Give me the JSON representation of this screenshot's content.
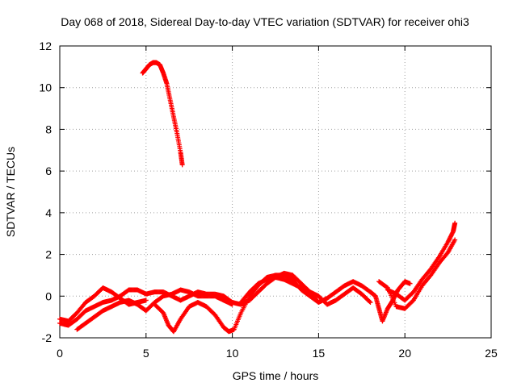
{
  "chart_data": {
    "type": "scatter",
    "title": "Day 068 of 2018, Sidereal Day-to-day VTEC variation (SDTVAR) for receiver ohi3",
    "xlabel": "GPS time / hours",
    "ylabel": "SDTVAR / TECUs",
    "xlim": [
      0,
      25
    ],
    "ylim": [
      -2,
      12
    ],
    "xticks": [
      0,
      5,
      10,
      15,
      20,
      25
    ],
    "yticks": [
      -2,
      0,
      2,
      4,
      6,
      8,
      10,
      12
    ],
    "grid": true,
    "marker": "plus",
    "color": "#ff0000",
    "series": [
      {
        "name": "track-1",
        "points": [
          [
            0.0,
            -1.1
          ],
          [
            0.5,
            -1.2
          ],
          [
            1.0,
            -0.8
          ],
          [
            1.5,
            -0.3
          ],
          [
            2.0,
            0.0
          ],
          [
            2.5,
            0.4
          ],
          [
            3.0,
            0.2
          ],
          [
            3.5,
            -0.1
          ],
          [
            4.0,
            -0.4
          ],
          [
            4.5,
            -0.3
          ],
          [
            5.0,
            -0.2
          ]
        ]
      },
      {
        "name": "track-2",
        "points": [
          [
            0.0,
            -1.3
          ],
          [
            0.5,
            -1.4
          ],
          [
            1.0,
            -1.1
          ],
          [
            1.5,
            -0.7
          ],
          [
            2.0,
            -0.5
          ],
          [
            2.5,
            -0.3
          ],
          [
            3.0,
            -0.2
          ],
          [
            3.5,
            0.0
          ],
          [
            4.0,
            0.3
          ],
          [
            4.5,
            0.3
          ],
          [
            5.0,
            0.1
          ],
          [
            5.5,
            0.2
          ],
          [
            6.0,
            0.2
          ],
          [
            6.5,
            0.0
          ],
          [
            7.0,
            -0.2
          ],
          [
            7.5,
            0.0
          ],
          [
            8.0,
            0.2
          ],
          [
            8.5,
            0.1
          ],
          [
            9.0,
            0.1
          ],
          [
            9.5,
            0.0
          ],
          [
            10.0,
            -0.3
          ],
          [
            10.5,
            -0.4
          ],
          [
            11.0,
            -0.2
          ],
          [
            11.5,
            0.2
          ],
          [
            12.0,
            0.6
          ],
          [
            12.5,
            0.9
          ],
          [
            13.0,
            0.8
          ],
          [
            13.5,
            0.6
          ],
          [
            14.0,
            0.4
          ],
          [
            14.5,
            0.2
          ],
          [
            15.0,
            -0.3
          ]
        ]
      },
      {
        "name": "track-3",
        "points": [
          [
            1.0,
            -1.6
          ],
          [
            1.5,
            -1.3
          ],
          [
            2.0,
            -1.0
          ],
          [
            2.5,
            -0.7
          ],
          [
            3.0,
            -0.5
          ],
          [
            3.5,
            -0.3
          ],
          [
            4.0,
            -0.2
          ],
          [
            4.5,
            -0.4
          ],
          [
            5.0,
            -0.7
          ],
          [
            5.5,
            -0.3
          ],
          [
            6.0,
            0.0
          ],
          [
            6.5,
            0.1
          ],
          [
            7.0,
            0.3
          ],
          [
            7.5,
            0.2
          ],
          [
            8.0,
            0.0
          ],
          [
            8.5,
            0.0
          ],
          [
            9.0,
            0.0
          ],
          [
            9.5,
            -0.2
          ],
          [
            10.0,
            -0.4
          ]
        ]
      },
      {
        "name": "track-4",
        "points": [
          [
            5.5,
            -0.4
          ],
          [
            6.0,
            -0.8
          ],
          [
            6.3,
            -1.4
          ],
          [
            6.6,
            -1.7
          ],
          [
            7.0,
            -1.1
          ],
          [
            7.5,
            -0.5
          ],
          [
            8.0,
            -0.3
          ],
          [
            8.5,
            -0.5
          ],
          [
            9.0,
            -0.9
          ],
          [
            9.5,
            -1.5
          ],
          [
            9.8,
            -1.7
          ],
          [
            10.1,
            -1.6
          ],
          [
            10.5,
            -0.8
          ],
          [
            11.0,
            0.0
          ],
          [
            11.5,
            0.5
          ],
          [
            12.0,
            0.9
          ],
          [
            12.5,
            1.0
          ],
          [
            13.0,
            1.0
          ],
          [
            13.5,
            0.8
          ],
          [
            14.0,
            0.3
          ],
          [
            14.5,
            0.0
          ],
          [
            15.0,
            -0.3
          ],
          [
            15.5,
            -0.1
          ],
          [
            16.0,
            0.2
          ],
          [
            16.5,
            0.5
          ],
          [
            17.0,
            0.7
          ],
          [
            17.5,
            0.5
          ],
          [
            18.0,
            0.2
          ]
        ]
      },
      {
        "name": "track-5",
        "points": [
          [
            10.5,
            -0.3
          ],
          [
            11.0,
            0.2
          ],
          [
            11.5,
            0.6
          ],
          [
            12.0,
            0.8
          ],
          [
            12.5,
            0.9
          ],
          [
            13.0,
            1.1
          ],
          [
            13.5,
            1.0
          ],
          [
            14.0,
            0.6
          ],
          [
            14.5,
            0.2
          ],
          [
            15.0,
            0.0
          ],
          [
            15.5,
            -0.4
          ],
          [
            16.0,
            -0.2
          ],
          [
            16.5,
            0.1
          ],
          [
            17.0,
            0.4
          ],
          [
            17.5,
            0.1
          ],
          [
            18.0,
            -0.3
          ]
        ]
      },
      {
        "name": "track-6",
        "points": [
          [
            18.0,
            0.2
          ],
          [
            18.3,
            0.0
          ],
          [
            18.5,
            -0.6
          ],
          [
            18.7,
            -1.2
          ],
          [
            19.0,
            -0.6
          ],
          [
            19.3,
            -0.2
          ],
          [
            19.6,
            0.3
          ],
          [
            20.0,
            0.7
          ],
          [
            20.3,
            0.6
          ]
        ]
      },
      {
        "name": "track-7",
        "points": [
          [
            18.5,
            0.7
          ],
          [
            19.0,
            0.4
          ],
          [
            19.5,
            -0.5
          ],
          [
            20.0,
            -0.6
          ],
          [
            20.5,
            -0.2
          ],
          [
            21.0,
            0.5
          ],
          [
            21.5,
            1.0
          ],
          [
            22.0,
            1.6
          ],
          [
            22.5,
            2.1
          ],
          [
            22.9,
            2.7
          ]
        ]
      },
      {
        "name": "track-8",
        "points": [
          [
            19.0,
            0.3
          ],
          [
            19.5,
            0.1
          ],
          [
            20.0,
            -0.2
          ],
          [
            20.5,
            0.2
          ],
          [
            21.0,
            0.8
          ],
          [
            21.5,
            1.3
          ],
          [
            22.0,
            1.9
          ],
          [
            22.5,
            2.6
          ],
          [
            22.8,
            3.1
          ],
          [
            22.9,
            3.5
          ]
        ]
      },
      {
        "name": "track-9",
        "points": [
          [
            4.8,
            10.7
          ],
          [
            5.0,
            10.9
          ],
          [
            5.2,
            11.1
          ],
          [
            5.4,
            11.2
          ],
          [
            5.6,
            11.2
          ],
          [
            5.8,
            11.1
          ],
          [
            6.0,
            10.7
          ],
          [
            6.2,
            10.2
          ],
          [
            6.4,
            9.4
          ],
          [
            6.6,
            8.6
          ],
          [
            6.8,
            7.8
          ],
          [
            7.0,
            6.9
          ],
          [
            7.1,
            6.3
          ]
        ]
      }
    ]
  }
}
